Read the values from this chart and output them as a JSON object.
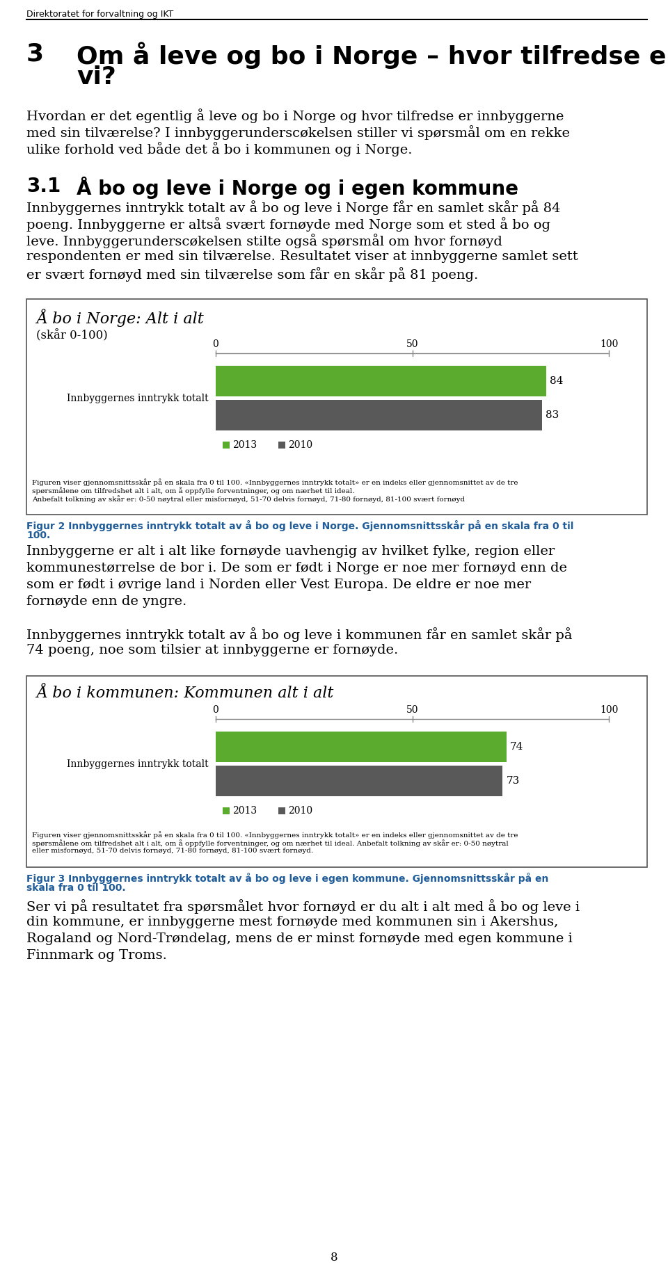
{
  "header_text": "Direktoratet for forvaltning og IKT",
  "chapter_number": "3",
  "ch_title_line1": "Om å leve og bo i Norge – hvor tilfredse er",
  "ch_title_line2": "vi?",
  "intro_lines": [
    "Hvordan er det egentlig å leve og bo i Norge og hvor tilfredse er innbyggerne",
    "med sin tilværelse? I innbyggerunderscøkelsen stiller vi spørsmål om en rekke",
    "ulike forhold ved både det å bo i kommunen og i Norge."
  ],
  "section_number": "3.1",
  "section_title": "Å bo og leve i Norge og i egen kommune",
  "text1_lines": [
    "Innbyggernes inntrykk totalt av å bo og leve i Norge får en samlet skår på 84",
    "poeng. Innbyggerne er altså svært fornøyde med Norge som et sted å bo og",
    "leve. Innbyggerunderscøkelsen stilte også spørsmål om hvor fornøyd",
    "respondenten er med sin tilværelse. Resultatet viser at innbyggerne samlet sett",
    "er svært fornøyd med sin tilværelse som får en skår på 81 poeng."
  ],
  "chart1_title": "Å bo i Norge: Alt i alt",
  "chart1_subtitle": "(skår 0-100)",
  "chart1_ylabel": "Innbyggernes inntrykk totalt",
  "chart1_val_2013": 84,
  "chart1_val_2010": 83,
  "chart1_fn1": "Figuren viser gjennomsnittsskår på en skala fra 0 til 100. «Innbyggernes inntrykk totalt» er en indeks eller gjennomsnittet av de tre",
  "chart1_fn2": "spørsmålene om tilfredshet alt i alt, om å oppfylle forventninger, og om nærhet til ideal.",
  "chart1_fn3": "Anbefalt tolkning av skår er: 0-50 nøytral eller misfornøyd, 51-70 delvis fornøyd, 71-80 fornøyd, 81-100 svært fornøyd",
  "fig2_cap1": "Figur 2 Innbyggernes inntrykk totalt av å bo og leve i Norge. Gjennomsnittsskår på en skala fra 0 til",
  "fig2_cap2": "100.",
  "text2_lines": [
    "Innbyggerne er alt i alt like fornøyde uavhengig av hvilket fylke, region eller",
    "kommunestørrelse de bor i. De som er født i Norge er noe mer fornøyd enn de",
    "som er født i øvrige land i Norden eller Vest Europa. De eldre er noe mer",
    "fornøyde enn de yngre."
  ],
  "text3_lines": [
    "Innbyggernes inntrykk totalt av å bo og leve i kommunen får en samlet skår på",
    "74 poeng, noe som tilsier at innbyggerne er fornøyde."
  ],
  "chart2_title": "Å bo i kommunen: Kommunen alt i alt",
  "chart2_ylabel": "Innbyggernes inntrykk totalt",
  "chart2_val_2013": 74,
  "chart2_val_2010": 73,
  "chart2_fn1": "Figuren viser gjennomsnittsskår på en skala fra 0 til 100. «Innbyggernes inntrykk totalt» er en indeks eller gjennomsnittet av de tre",
  "chart2_fn2": "spørsmålene om tilfredshet alt i alt, om å oppfylle forventninger, og om nærhet til ideal. Anbefalt tolkning av skår er: 0-50 nøytral",
  "chart2_fn3": "eller misfornøyd, 51-70 delvis fornøyd, 71-80 fornøyd, 81-100 svært fornøyd.",
  "fig3_cap1": "Figur 3 Innbyggernes inntrykk totalt av å bo og leve i egen kommune. Gjennomsnittsskår på en",
  "fig3_cap2": "skala fra 0 til 100.",
  "text4_lines": [
    "Ser vi på resultatet fra spørsmålet hvor fornøyd er du alt i alt med å bo og leve i",
    "din kommune, er innbyggerne mest fornøyde med kommunen sin i Akershus,",
    "Rogaland og Nord-Trøndelag, mens de er minst fornøyde med egen kommune i",
    "Finnmark og Troms."
  ],
  "page_number": "8",
  "color_green": "#5aab2e",
  "color_gray": "#595959",
  "color_caption": "#1f5c99",
  "color_border": "#555555"
}
